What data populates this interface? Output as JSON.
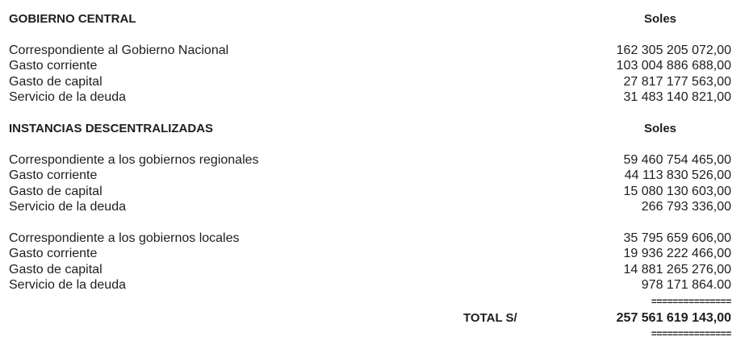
{
  "sections": [
    {
      "heading": "GOBIERNO CENTRAL",
      "unit": "Soles",
      "groups": [
        [
          {
            "label": "Correspondiente al Gobierno Nacional",
            "value": "162 305 205 072,00"
          },
          {
            "label": "Gasto corriente",
            "value": "103 004 886 688,00"
          },
          {
            "label": "Gasto de capital",
            "value": "27 817 177 563,00"
          },
          {
            "label": "Servicio de la deuda",
            "value": "31 483 140 821,00"
          }
        ]
      ]
    },
    {
      "heading": "INSTANCIAS DESCENTRALIZADAS",
      "unit": "Soles",
      "groups": [
        [
          {
            "label": "Correspondiente a los gobiernos regionales",
            "value": "59 460 754 465,00"
          },
          {
            "label": "Gasto corriente",
            "value": "44 113 830 526,00"
          },
          {
            "label": "Gasto de capital",
            "value": "15 080 130 603,00"
          },
          {
            "label": "Servicio de la deuda",
            "value": "266 793 336,00"
          }
        ],
        [
          {
            "label": "Correspondiente a los gobiernos locales",
            "value": "35 795 659 606,00"
          },
          {
            "label": "Gasto corriente",
            "value": "19 936 222 466,00"
          },
          {
            "label": "Gasto de capital",
            "value": "14 881 265 276,00"
          },
          {
            "label": "Servicio de la deuda",
            "value": "978 171 864.00"
          }
        ]
      ]
    }
  ],
  "total": {
    "label": "TOTAL S/",
    "value": "257 561 619 143,00",
    "separator": "==============="
  }
}
